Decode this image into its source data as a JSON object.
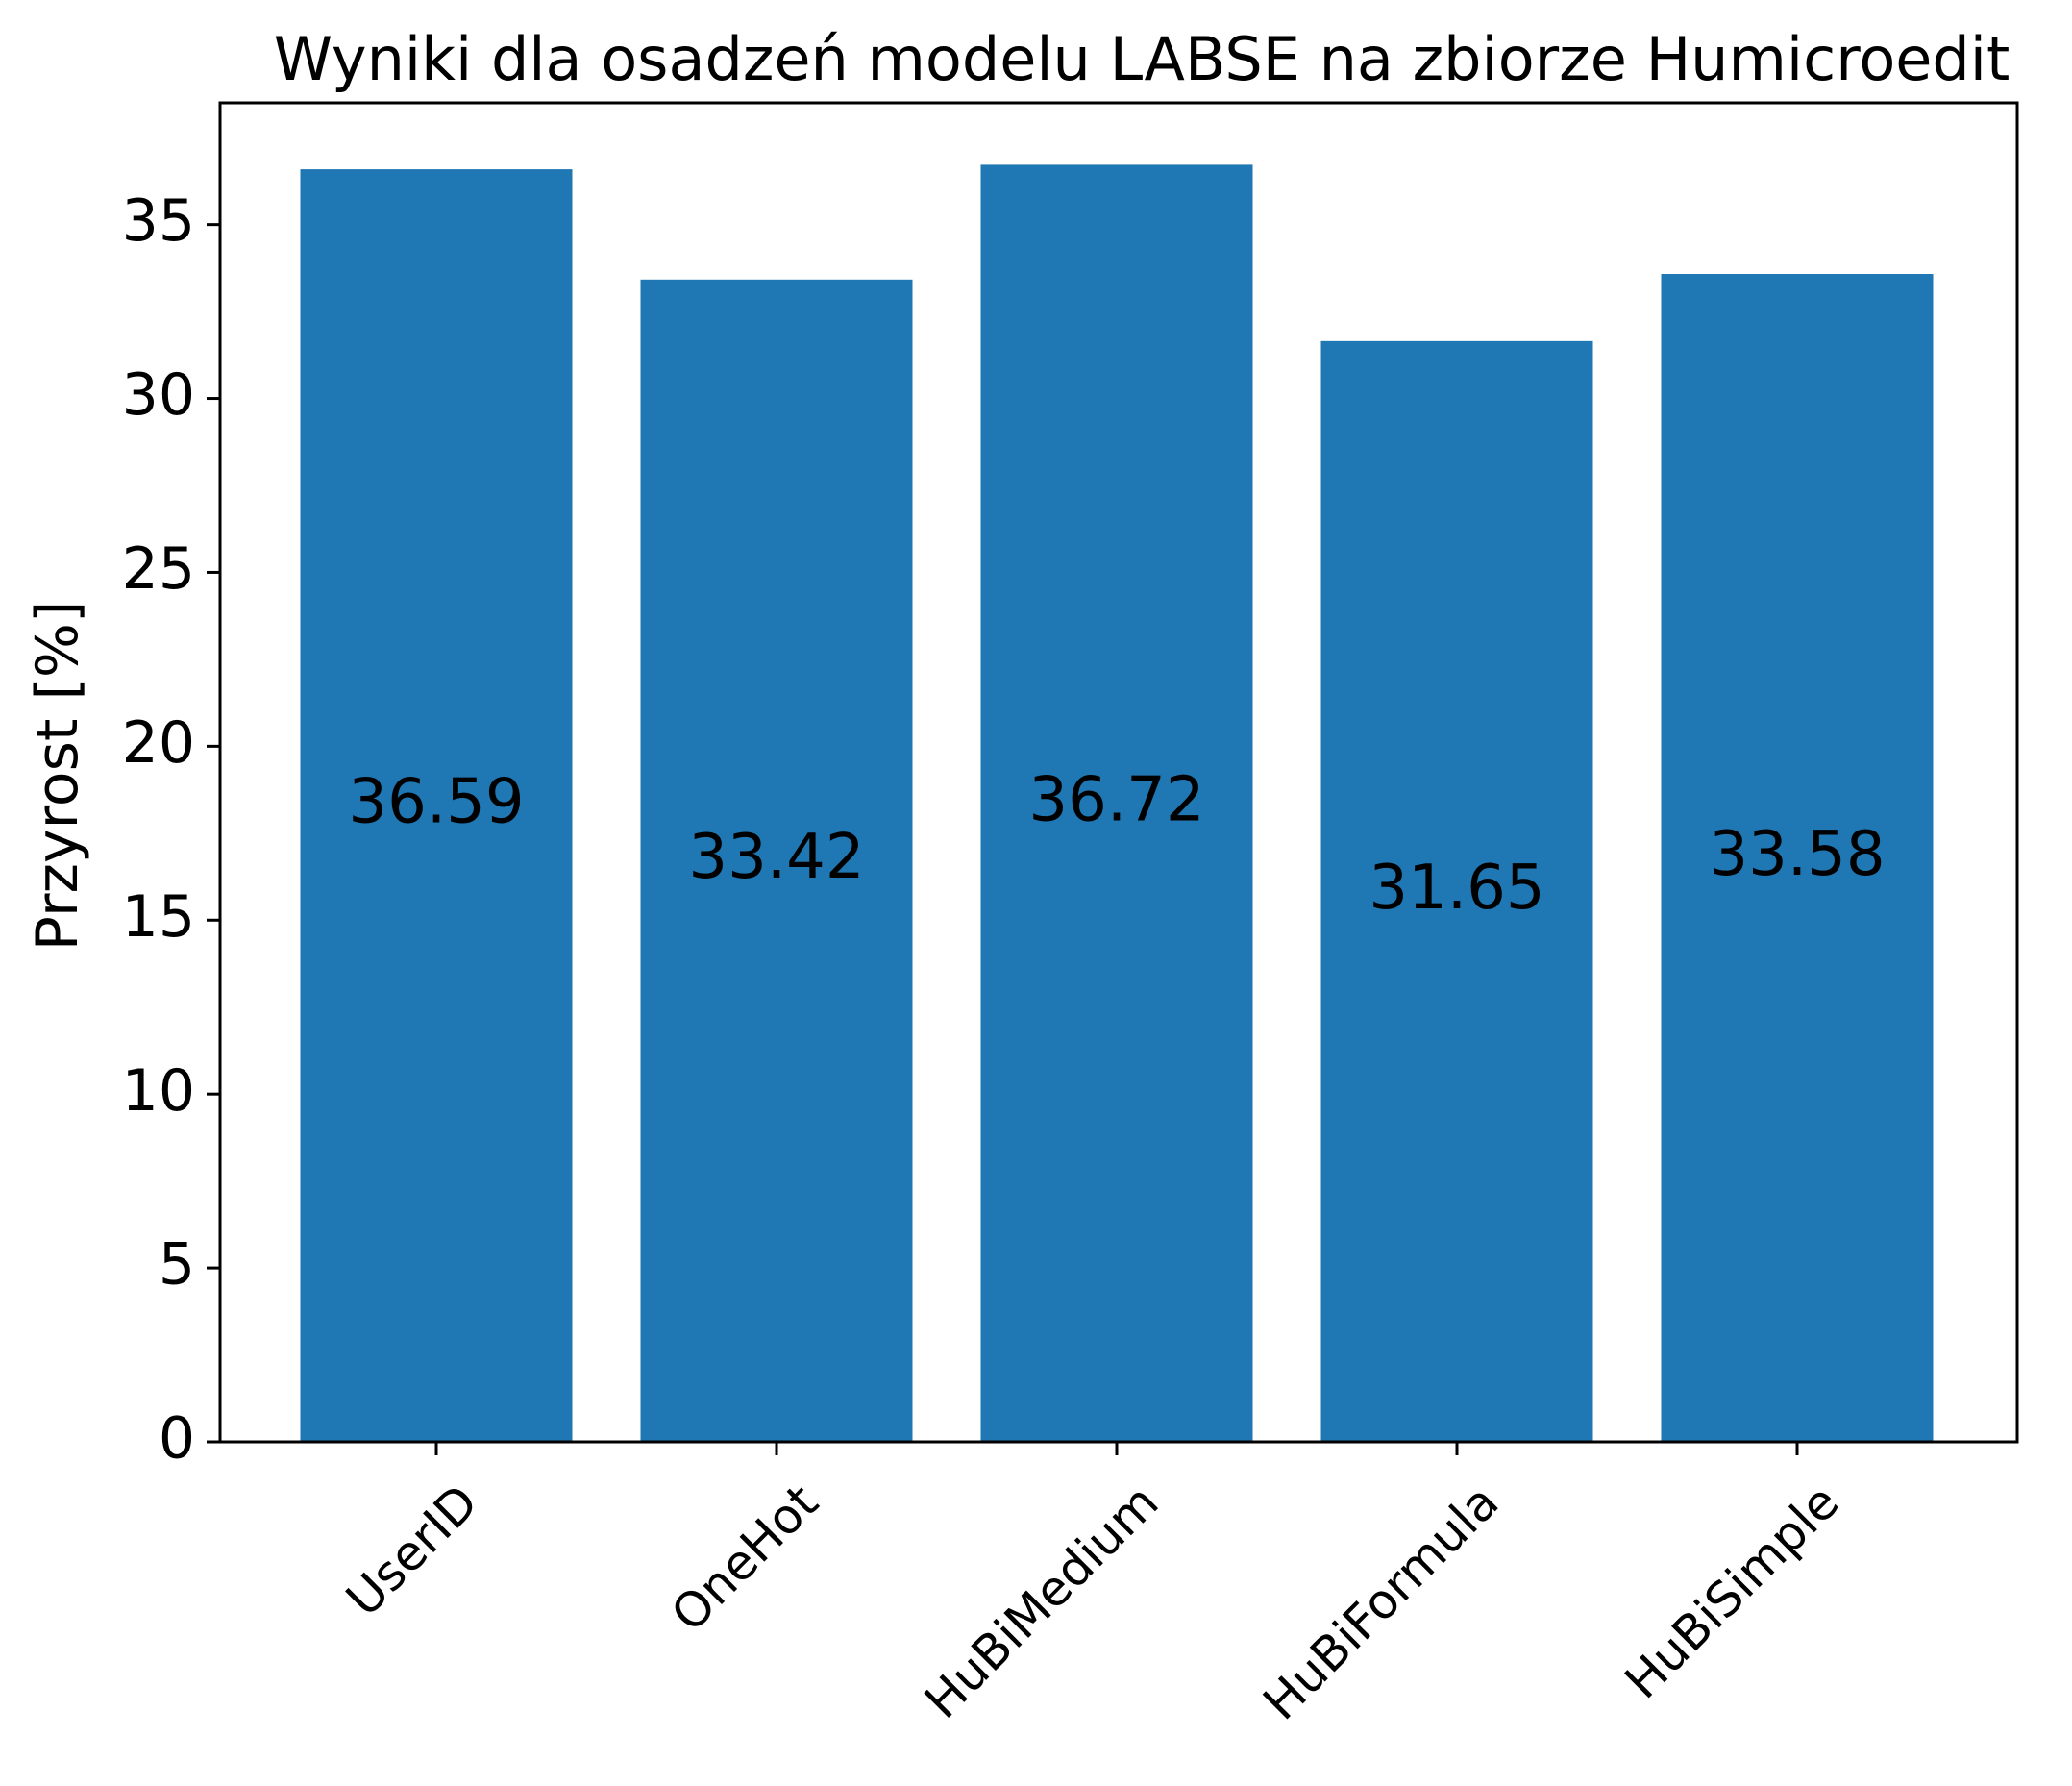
{
  "chart_data": {
    "type": "bar",
    "title": "Wyniki dla osadzeń modelu LABSE na zbiorze Humicroedit",
    "xlabel": "",
    "ylabel": "Przyrost [%]",
    "categories": [
      "UserID",
      "OneHot",
      "HuBiMedium",
      "HuBiFormula",
      "HuBiSimple"
    ],
    "values": [
      36.59,
      33.42,
      36.72,
      31.65,
      33.58
    ],
    "data_labels": [
      "36.59",
      "33.42",
      "36.72",
      "31.65",
      "33.58"
    ],
    "ylim": [
      0,
      38.5
    ],
    "yticks": [
      0,
      5,
      10,
      15,
      20,
      25,
      30,
      35
    ],
    "bar_color": "#1f77b4",
    "grid": false,
    "legend": "none",
    "xtick_rotation_deg": 45
  }
}
